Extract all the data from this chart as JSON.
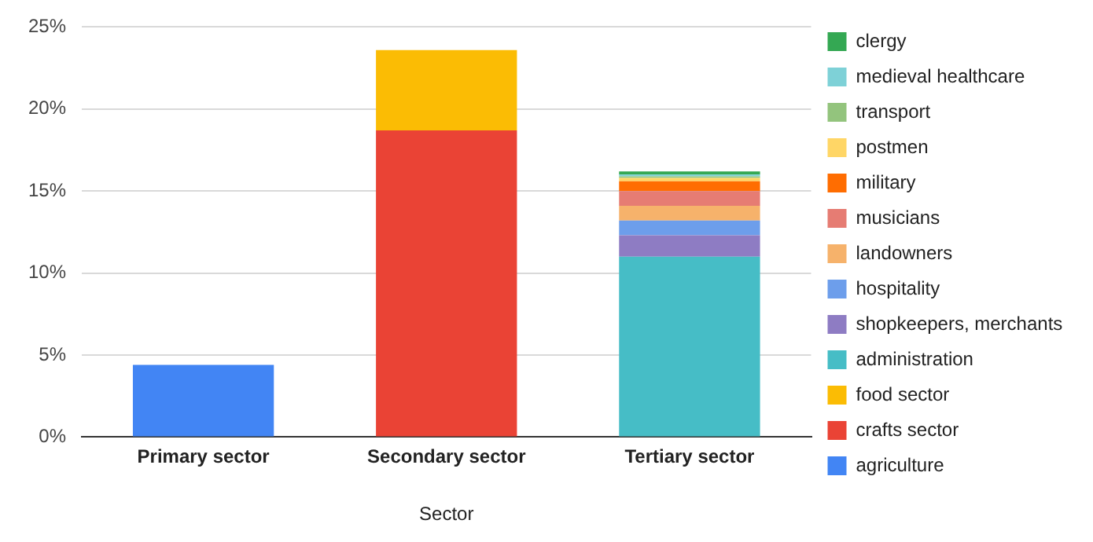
{
  "chart_data": {
    "type": "bar",
    "stacked": true,
    "xlabel": "Sector",
    "categories": [
      "Primary sector",
      "Secondary sector",
      "Tertiary sector"
    ],
    "series": [
      {
        "name": "agriculture",
        "color": "#4285f4",
        "values": [
          4.4,
          null,
          null
        ]
      },
      {
        "name": "crafts sector",
        "color": "#ea4335",
        "values": [
          null,
          18.7,
          null
        ]
      },
      {
        "name": "food sector",
        "color": "#fbbc04",
        "values": [
          null,
          4.9,
          null
        ]
      },
      {
        "name": "administration",
        "color": "#46bdc6",
        "values": [
          null,
          null,
          11.0
        ]
      },
      {
        "name": "shopkeepers, merchants",
        "color": "#8e7cc3",
        "values": [
          null,
          null,
          1.3
        ]
      },
      {
        "name": "hospitality",
        "color": "#6d9eeb",
        "values": [
          null,
          null,
          0.9
        ]
      },
      {
        "name": "landowners",
        "color": "#f6b26b",
        "values": [
          null,
          null,
          0.9
        ]
      },
      {
        "name": "musicians",
        "color": "#e67c73",
        "values": [
          null,
          null,
          0.9
        ]
      },
      {
        "name": "military",
        "color": "#ff6d01",
        "values": [
          null,
          null,
          0.6
        ]
      },
      {
        "name": "postmen",
        "color": "#ffd666",
        "values": [
          null,
          null,
          0.2
        ]
      },
      {
        "name": "transport",
        "color": "#93c47d",
        "values": [
          null,
          null,
          0.1
        ]
      },
      {
        "name": "medieval healthcare",
        "color": "#7ed1d7",
        "values": [
          null,
          null,
          0.1
        ]
      },
      {
        "name": "clergy",
        "color": "#34a853",
        "values": [
          null,
          null,
          0.2
        ]
      }
    ],
    "ylim": [
      0,
      25
    ],
    "yticks": [
      {
        "value": 0,
        "label": "0%"
      },
      {
        "value": 5,
        "label": "5%"
      },
      {
        "value": 10,
        "label": "10%"
      },
      {
        "value": 15,
        "label": "15%"
      },
      {
        "value": 20,
        "label": "20%"
      },
      {
        "value": 25,
        "label": "25%"
      }
    ],
    "grid": "y",
    "legend": "right"
  }
}
